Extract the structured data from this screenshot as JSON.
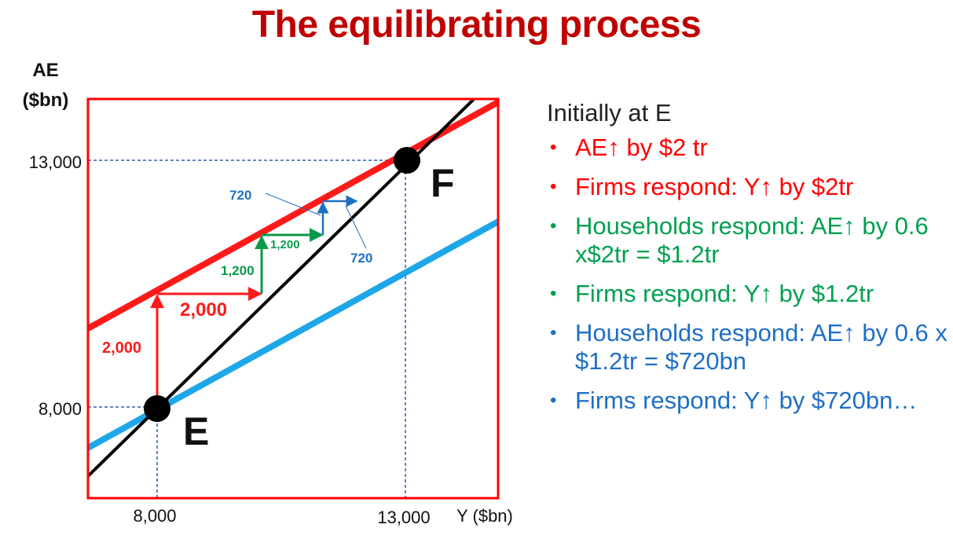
{
  "title": "The equilibrating process",
  "axes": {
    "y_label_line1": "AE",
    "y_label_line2": "($bn)",
    "x_label": "Y ($bn)",
    "y_ticks": [
      "13,000",
      "8,000"
    ],
    "x_ticks": [
      "8,000",
      "13,000"
    ]
  },
  "points": {
    "E": "E",
    "F": "F"
  },
  "step_labels": {
    "red_up": "2,000",
    "red_right": "2,000",
    "green_up": "1,200",
    "green_right": "1,200",
    "blue_up": "720",
    "blue_right": "720"
  },
  "text_panel": {
    "intro": "Initially at E",
    "bullets": [
      {
        "text": "AE↑ by $2 tr",
        "color": "#ff0000"
      },
      {
        "text": "Firms respond: Y↑ by $2tr",
        "color": "#ff0000"
      },
      {
        "text": "Households respond: AE↑ by 0.6 x$2tr = $1.2tr",
        "color": "#00a050"
      },
      {
        "text": "Firms respond: Y↑ by $1.2tr",
        "color": "#00a050"
      },
      {
        "text": "Households respond: AE↑ by 0.6 x $1.2tr = $720bn",
        "color": "#1f6fc5"
      },
      {
        "text": "Firms respond: Y↑ by $720bn…",
        "color": "#1f6fc5"
      }
    ]
  },
  "colors": {
    "title": "#c00000",
    "frame": "#ff0000",
    "ae_new": "#ff1a1a",
    "ae_old": "#1ea7e8",
    "line45": "#000000",
    "red": "#ff1a1a",
    "green": "#0a9a4a",
    "blue": "#1f6fc5",
    "guide": "#2f5faa"
  }
}
